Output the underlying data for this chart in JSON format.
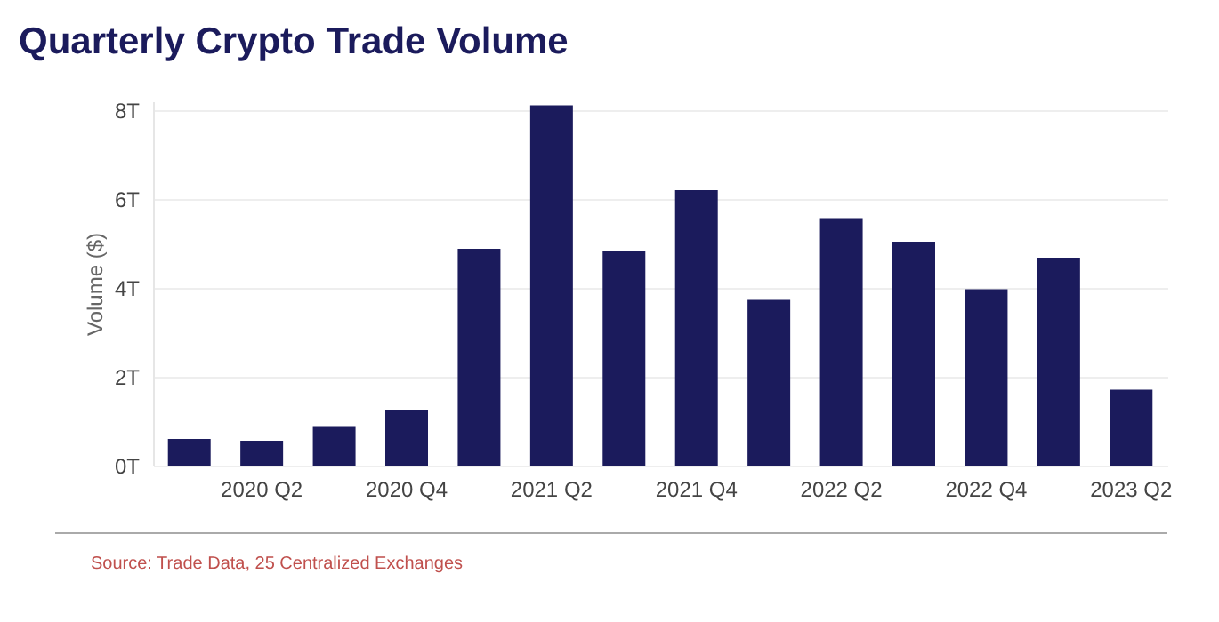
{
  "chart_data": {
    "type": "bar",
    "title": "Quarterly Crypto Trade Volume",
    "ylabel": "Volume ($)",
    "categories": [
      null,
      "2020 Q2",
      null,
      "2020 Q4",
      null,
      "2021 Q2",
      null,
      "2021 Q4",
      null,
      "2022 Q2",
      null,
      "2022 Q4",
      null,
      "2023 Q2"
    ],
    "values": [
      0.6,
      0.56,
      0.89,
      1.26,
      4.88,
      8.11,
      4.82,
      6.2,
      3.73,
      5.57,
      5.04,
      3.97,
      4.68,
      1.71
    ],
    "color": "#1b1b5c",
    "ylim": [
      0,
      8.2
    ],
    "yticks": [
      {
        "value": 0,
        "label": "0T"
      },
      {
        "value": 2,
        "label": "2T"
      },
      {
        "value": 4,
        "label": "4T"
      },
      {
        "value": 6,
        "label": "6T"
      },
      {
        "value": 8,
        "label": "8T"
      }
    ],
    "grid": "y",
    "annotations": [
      "Source: Trade Data, 25 Centralized Exchanges"
    ]
  }
}
